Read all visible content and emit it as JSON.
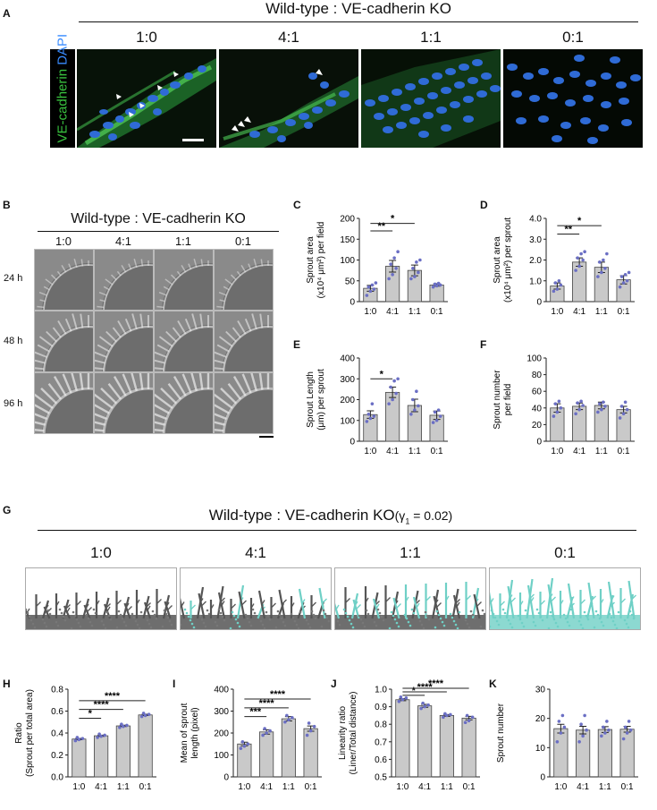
{
  "figure": {
    "A": {
      "letter": "A",
      "title": "Wild-type : VE-cadherin KO",
      "ratios": [
        "1:0",
        "4:1",
        "1:1",
        "0:1"
      ],
      "stain_green": "VE-cadherin",
      "stain_blue": "DAPI"
    },
    "B": {
      "letter": "B",
      "title": "Wild-type : VE-cadherin KO",
      "ratios": [
        "1:0",
        "4:1",
        "1:1",
        "0:1"
      ],
      "times": [
        "24 h",
        "48 h",
        "96 h"
      ]
    },
    "G": {
      "letter": "G",
      "title_main": "Wild-type : VE-cadherin KO",
      "title_param": "(γ",
      "title_sub": "1",
      "title_param_end": " = 0.02)",
      "ratios": [
        "1:0",
        "4:1",
        "1:1",
        "0:1"
      ]
    },
    "colors": {
      "green_stain": "#39c23f",
      "blue_stain": "#2f6bd6",
      "dots": "#6b6fc4",
      "bar": "#c9c9c9",
      "cyan_sim": "#6fd0c6",
      "gray_sim": "#555555"
    }
  },
  "chart_data": [
    {
      "type": "bar",
      "panel": "C",
      "categories": [
        "1:0",
        "4:1",
        "1:1",
        "0:1"
      ],
      "values": [
        32,
        85,
        75,
        40
      ],
      "errors": [
        7,
        14,
        13,
        3
      ],
      "points": [
        [
          15,
          25,
          30,
          35,
          40,
          45
        ],
        [
          55,
          65,
          80,
          90,
          105,
          120
        ],
        [
          55,
          60,
          70,
          80,
          95,
          100
        ],
        [
          35,
          38,
          40,
          42,
          44
        ]
      ],
      "ylim": [
        0,
        200
      ],
      "yticks": [
        "0",
        "50",
        "100",
        "150",
        "200"
      ],
      "ylabel": "Sprout area",
      "ylabel2": "(x10⁴ μm²) per field",
      "sig": [
        {
          "label": "**",
          "from": 0,
          "to": 1,
          "y": 170
        },
        {
          "label": "*",
          "from": 0,
          "to": 2,
          "y": 188
        }
      ]
    },
    {
      "type": "bar",
      "panel": "D",
      "categories": [
        "1:0",
        "4:1",
        "1:1",
        "0:1"
      ],
      "values": [
        0.75,
        1.9,
        1.65,
        1.05
      ],
      "errors": [
        0.15,
        0.2,
        0.25,
        0.2
      ],
      "points": [
        [
          0.5,
          0.6,
          0.8,
          0.9,
          1.0
        ],
        [
          1.5,
          1.7,
          2.0,
          2.1,
          2.3,
          2.4
        ],
        [
          1.2,
          1.4,
          1.6,
          1.9,
          2.0,
          2.3
        ],
        [
          0.7,
          0.9,
          1.0,
          1.2,
          1.3,
          1.4
        ]
      ],
      "ylim": [
        0,
        4.0
      ],
      "yticks": [
        "0",
        "1.0",
        "2.0",
        "3.0",
        "4.0"
      ],
      "ylabel": "Sprout area",
      "ylabel2": "(x10⁴ μm²) per sprout",
      "sig": [
        {
          "label": "**",
          "from": 0,
          "to": 1,
          "y": 3.25
        },
        {
          "label": "*",
          "from": 0,
          "to": 2,
          "y": 3.65
        }
      ]
    },
    {
      "type": "bar",
      "panel": "E",
      "categories": [
        "1:0",
        "4:1",
        "1:1",
        "0:1"
      ],
      "values": [
        128,
        235,
        172,
        125
      ],
      "errors": [
        18,
        25,
        30,
        20
      ],
      "points": [
        [
          95,
          110,
          120,
          130,
          180
        ],
        [
          180,
          200,
          230,
          260,
          290,
          300
        ],
        [
          130,
          150,
          170,
          200,
          240
        ],
        [
          90,
          100,
          120,
          140,
          150
        ]
      ],
      "ylim": [
        0,
        400
      ],
      "yticks": [
        "0",
        "100",
        "200",
        "300",
        "400"
      ],
      "ylabel": "Sprout Length",
      "ylabel2": "(μm) per sprout",
      "sig": [
        {
          "label": "*",
          "from": 0,
          "to": 1,
          "y": 300
        }
      ]
    },
    {
      "type": "bar",
      "panel": "F",
      "categories": [
        "1:0",
        "4:1",
        "1:1",
        "0:1"
      ],
      "values": [
        40,
        42,
        43,
        38
      ],
      "errors": [
        5,
        4,
        4,
        4
      ],
      "points": [
        [
          30,
          35,
          40,
          45,
          48
        ],
        [
          33,
          38,
          43,
          46,
          48
        ],
        [
          35,
          38,
          42,
          45,
          47
        ],
        [
          28,
          33,
          38,
          42,
          47
        ]
      ],
      "ylim": [
        0,
        100
      ],
      "yticks": [
        "0",
        "20",
        "40",
        "60",
        "80",
        "100"
      ],
      "ylabel": "Sprout number",
      "ylabel2": "per field",
      "sig": []
    },
    {
      "type": "bar",
      "panel": "H",
      "categories": [
        "1:0",
        "4:1",
        "1:1",
        "0:1"
      ],
      "values": [
        0.345,
        0.375,
        0.465,
        0.565
      ],
      "errors": [
        0.006,
        0.006,
        0.006,
        0.006
      ],
      "points": [
        [
          0.33,
          0.34,
          0.35,
          0.36
        ],
        [
          0.36,
          0.37,
          0.38,
          0.39
        ],
        [
          0.45,
          0.46,
          0.47,
          0.48
        ],
        [
          0.55,
          0.56,
          0.57,
          0.58
        ]
      ],
      "ylim": [
        0,
        0.8
      ],
      "yticks": [
        "0.0",
        "0.2",
        "0.4",
        "0.6",
        "0.8"
      ],
      "ylabel": "Ratio",
      "ylabel2": "(Sprout per total area)",
      "sig": [
        {
          "label": "*",
          "from": 0,
          "to": 1,
          "y": 0.535
        },
        {
          "label": "****",
          "from": 0,
          "to": 2,
          "y": 0.615
        },
        {
          "label": "****",
          "from": 0,
          "to": 3,
          "y": 0.695
        }
      ]
    },
    {
      "type": "bar",
      "panel": "I",
      "categories": [
        "1:0",
        "4:1",
        "1:1",
        "0:1"
      ],
      "values": [
        150,
        205,
        265,
        220
      ],
      "errors": [
        8,
        10,
        10,
        12
      ],
      "points": [
        [
          130,
          140,
          150,
          160
        ],
        [
          190,
          200,
          210,
          220
        ],
        [
          250,
          260,
          270,
          280
        ],
        [
          190,
          210,
          230,
          245
        ]
      ],
      "ylim": [
        0,
        400
      ],
      "yticks": [
        "0",
        "100",
        "200",
        "300",
        "400"
      ],
      "ylabel": "Mean of sprout",
      "ylabel2": "length (pixel)",
      "sig": [
        {
          "label": "***",
          "from": 0,
          "to": 1,
          "y": 275
        },
        {
          "label": "****",
          "from": 0,
          "to": 2,
          "y": 315
        },
        {
          "label": "****",
          "from": 0,
          "to": 3,
          "y": 355
        }
      ]
    },
    {
      "type": "bar",
      "panel": "J",
      "categories": [
        "1:0",
        "4:1",
        "1:1",
        "0:1"
      ],
      "values": [
        0.94,
        0.905,
        0.85,
        0.835
      ],
      "errors": [
        0.006,
        0.008,
        0.005,
        0.01
      ],
      "points": [
        [
          0.93,
          0.94,
          0.95,
          0.955
        ],
        [
          0.89,
          0.9,
          0.91,
          0.92
        ],
        [
          0.84,
          0.85,
          0.855,
          0.86
        ],
        [
          0.81,
          0.82,
          0.84,
          0.85
        ]
      ],
      "ylim": [
        0.5,
        1.0
      ],
      "yticks": [
        "0.5",
        "0.6",
        "0.7",
        "0.8",
        "0.9",
        "1.0"
      ],
      "ylabel": "Linearity ratio",
      "ylabel2": "(Liner/Total distance)",
      "sig": [
        {
          "label": "*",
          "from": 0,
          "to": 1,
          "y": 0.965
        },
        {
          "label": "****",
          "from": 0,
          "to": 2,
          "y": 0.985
        },
        {
          "label": "****",
          "from": 0,
          "to": 3,
          "y": 1.005
        }
      ]
    },
    {
      "type": "bar",
      "panel": "K",
      "categories": [
        "1:0",
        "4:1",
        "1:1",
        "0:1"
      ],
      "values": [
        16.5,
        16,
        16.2,
        16.3
      ],
      "errors": [
        1.5,
        1.3,
        1,
        1
      ],
      "points": [
        [
          12,
          15,
          17,
          19,
          21
        ],
        [
          12,
          14,
          16,
          18,
          21
        ],
        [
          14,
          15,
          16,
          17,
          19
        ],
        [
          13,
          15,
          16,
          17,
          19
        ]
      ],
      "ylim": [
        0,
        30
      ],
      "yticks": [
        "0",
        "10",
        "20",
        "30"
      ],
      "ylabel": "Sprout number",
      "ylabel2": "",
      "sig": []
    }
  ]
}
